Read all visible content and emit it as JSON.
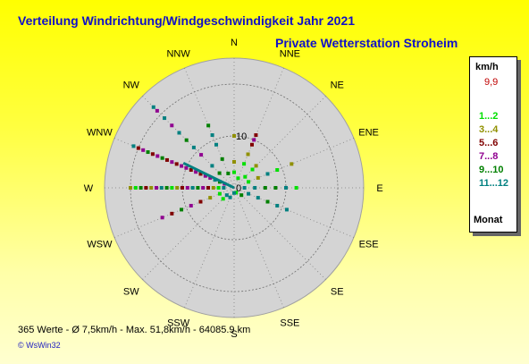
{
  "title": "Verteilung Windrichtung/Windgeschwindigkeit  Jahr 2021",
  "subtitle": "Private Wetterstation Stroheim",
  "stats": "365 Werte   -   Ø 7,5km/h  -  Max. 51,8km/h  -  64085.9 km",
  "credit": "WsWin32",
  "colors": {
    "background_top": "#ffff00",
    "background_bottom": "#ffffd0",
    "plot_fill": "#d4d4d4",
    "text_blue": "#1010c8"
  },
  "legend": {
    "unit": "km/h",
    "mean": "9,9",
    "footer": "Monat",
    "items": [
      {
        "label": "1...2",
        "color": "#00e000"
      },
      {
        "label": "3...4",
        "color": "#909000"
      },
      {
        "label": "5...6",
        "color": "#800000"
      },
      {
        "label": "7...8",
        "color": "#900090"
      },
      {
        "label": "9...10",
        "color": "#008000"
      },
      {
        "label": "11...12",
        "color": "#008080"
      }
    ]
  },
  "chart_data": {
    "type": "scatter",
    "projection": "polar",
    "directions": [
      "N",
      "NNE",
      "NE",
      "ENE",
      "E",
      "ESE",
      "SE",
      "SSE",
      "S",
      "SSW",
      "SW",
      "WSW",
      "W",
      "WNW",
      "NW",
      "NNW"
    ],
    "radial_ticks": [
      0,
      10
    ],
    "radial_max": 25,
    "grid": true,
    "legend_position": "right",
    "mean_vector": {
      "direction_deg": 296,
      "speed": 9.9,
      "color": "#008080"
    },
    "points": [
      {
        "dir": "N",
        "speed": 3,
        "group": 0
      },
      {
        "dir": "N",
        "speed": 5,
        "group": 1
      },
      {
        "dir": "N",
        "speed": 10,
        "group": 1
      },
      {
        "dir": "NNE",
        "speed": 2,
        "group": 0
      },
      {
        "dir": "NNE",
        "speed": 5,
        "group": 0
      },
      {
        "dir": "NNE",
        "speed": 7,
        "group": 1
      },
      {
        "dir": "NNE",
        "speed": 9,
        "group": 2
      },
      {
        "dir": "NNE",
        "speed": 10,
        "group": 3
      },
      {
        "dir": "NNE",
        "speed": 11,
        "group": 2
      },
      {
        "dir": "NE",
        "speed": 3,
        "group": 0
      },
      {
        "dir": "NE",
        "speed": 5,
        "group": 0
      },
      {
        "dir": "NE",
        "speed": 6,
        "group": 1
      },
      {
        "dir": "ENE",
        "speed": 3,
        "group": 0
      },
      {
        "dir": "ENE",
        "speed": 5,
        "group": 1
      },
      {
        "dir": "ENE",
        "speed": 7,
        "group": 5
      },
      {
        "dir": "ENE",
        "speed": 9,
        "group": 0
      },
      {
        "dir": "ENE",
        "speed": 12,
        "group": 1
      },
      {
        "dir": "E",
        "speed": 2,
        "group": 5
      },
      {
        "dir": "E",
        "speed": 4,
        "group": 5
      },
      {
        "dir": "E",
        "speed": 6,
        "group": 4
      },
      {
        "dir": "E",
        "speed": 8,
        "group": 4
      },
      {
        "dir": "E",
        "speed": 10,
        "group": 5
      },
      {
        "dir": "E",
        "speed": 12,
        "group": 0
      },
      {
        "dir": "ESE",
        "speed": 3,
        "group": 5
      },
      {
        "dir": "ESE",
        "speed": 5,
        "group": 5
      },
      {
        "dir": "ESE",
        "speed": 7,
        "group": 4
      },
      {
        "dir": "ESE",
        "speed": 9,
        "group": 5
      },
      {
        "dir": "ESE",
        "speed": 11,
        "group": 5
      },
      {
        "dir": "SE",
        "speed": 2,
        "group": 4
      },
      {
        "dir": "SSE",
        "speed": 1,
        "group": 0
      },
      {
        "dir": "S",
        "speed": 1,
        "group": 5
      },
      {
        "dir": "SSW",
        "speed": 2,
        "group": 5
      },
      {
        "dir": "SW",
        "speed": 2,
        "group": 5
      },
      {
        "dir": "SW",
        "speed": 3,
        "group": 0
      },
      {
        "dir": "WSW",
        "speed": 3,
        "group": 0
      },
      {
        "dir": "WSW",
        "speed": 5,
        "group": 1
      },
      {
        "dir": "WSW",
        "speed": 7,
        "group": 2
      },
      {
        "dir": "WSW",
        "speed": 9,
        "group": 3
      },
      {
        "dir": "WSW",
        "speed": 11,
        "group": 4
      },
      {
        "dir": "WSW",
        "speed": 13,
        "group": 2
      },
      {
        "dir": "WSW",
        "speed": 15,
        "group": 3
      },
      {
        "dir": "W",
        "speed": 2,
        "group": 5
      },
      {
        "dir": "W",
        "speed": 3,
        "group": 0
      },
      {
        "dir": "W",
        "speed": 4,
        "group": 1
      },
      {
        "dir": "W",
        "speed": 5,
        "group": 2
      },
      {
        "dir": "W",
        "speed": 6,
        "group": 3
      },
      {
        "dir": "W",
        "speed": 7,
        "group": 4
      },
      {
        "dir": "W",
        "speed": 8,
        "group": 5
      },
      {
        "dir": "W",
        "speed": 9,
        "group": 3
      },
      {
        "dir": "W",
        "speed": 10,
        "group": 2
      },
      {
        "dir": "W",
        "speed": 11,
        "group": 1
      },
      {
        "dir": "W",
        "speed": 12,
        "group": 0
      },
      {
        "dir": "W",
        "speed": 13,
        "group": 4
      },
      {
        "dir": "W",
        "speed": 14,
        "group": 5
      },
      {
        "dir": "W",
        "speed": 15,
        "group": 3
      },
      {
        "dir": "W",
        "speed": 16,
        "group": 1
      },
      {
        "dir": "W",
        "speed": 17,
        "group": 2
      },
      {
        "dir": "W",
        "speed": 18,
        "group": 4
      },
      {
        "dir": "W",
        "speed": 19,
        "group": 0
      },
      {
        "dir": "W",
        "speed": 20,
        "group": 1
      },
      {
        "dir": "WNW",
        "speed": 2,
        "group": 3
      },
      {
        "dir": "WNW",
        "speed": 3,
        "group": 4
      },
      {
        "dir": "WNW",
        "speed": 4,
        "group": 5
      },
      {
        "dir": "WNW",
        "speed": 5,
        "group": 3
      },
      {
        "dir": "WNW",
        "speed": 6,
        "group": 3
      },
      {
        "dir": "WNW",
        "speed": 7,
        "group": 2
      },
      {
        "dir": "WNW",
        "speed": 8,
        "group": 3
      },
      {
        "dir": "WNW",
        "speed": 9,
        "group": 2
      },
      {
        "dir": "WNW",
        "speed": 10,
        "group": 3
      },
      {
        "dir": "WNW",
        "speed": 11,
        "group": 3
      },
      {
        "dir": "WNW",
        "speed": 12,
        "group": 2
      },
      {
        "dir": "WNW",
        "speed": 13,
        "group": 3
      },
      {
        "dir": "WNW",
        "speed": 14,
        "group": 2
      },
      {
        "dir": "WNW",
        "speed": 15,
        "group": 4
      },
      {
        "dir": "WNW",
        "speed": 16,
        "group": 3
      },
      {
        "dir": "WNW",
        "speed": 17,
        "group": 2
      },
      {
        "dir": "WNW",
        "speed": 18,
        "group": 4
      },
      {
        "dir": "WNW",
        "speed": 19,
        "group": 3
      },
      {
        "dir": "WNW",
        "speed": 20,
        "group": 2
      },
      {
        "dir": "WNW",
        "speed": 21,
        "group": 5
      },
      {
        "dir": "NW",
        "speed": 4,
        "group": 4
      },
      {
        "dir": "NW",
        "speed": 6,
        "group": 5
      },
      {
        "dir": "NW",
        "speed": 9,
        "group": 3
      },
      {
        "dir": "NW",
        "speed": 11,
        "group": 5
      },
      {
        "dir": "NW",
        "speed": 13,
        "group": 4
      },
      {
        "dir": "NW",
        "speed": 15,
        "group": 5
      },
      {
        "dir": "NW",
        "speed": 17,
        "group": 3
      },
      {
        "dir": "NW",
        "speed": 19,
        "group": 5
      },
      {
        "dir": "NW",
        "speed": 21,
        "group": 3
      },
      {
        "dir": "NW",
        "speed": 22,
        "group": 5
      },
      {
        "dir": "NNW",
        "speed": 3,
        "group": 4
      },
      {
        "dir": "NNW",
        "speed": 6,
        "group": 4
      },
      {
        "dir": "NNW",
        "speed": 9,
        "group": 5
      },
      {
        "dir": "NNW",
        "speed": 11,
        "group": 5
      },
      {
        "dir": "NNW",
        "speed": 13,
        "group": 4
      }
    ]
  }
}
